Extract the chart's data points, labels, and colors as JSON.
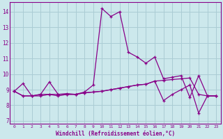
{
  "xlabel": "Windchill (Refroidissement éolien,°C)",
  "bg_color": "#cce8ec",
  "grid_color": "#aaccd4",
  "line_color": "#880088",
  "x": [
    0,
    1,
    2,
    3,
    4,
    5,
    6,
    7,
    8,
    9,
    10,
    11,
    12,
    13,
    14,
    15,
    16,
    17,
    18,
    19,
    20,
    21,
    22,
    23
  ],
  "series1": [
    8.9,
    9.4,
    8.6,
    8.7,
    9.5,
    8.7,
    8.75,
    8.7,
    8.85,
    9.3,
    14.2,
    13.7,
    14.0,
    11.4,
    11.1,
    10.7,
    11.1,
    9.7,
    9.8,
    9.9,
    8.5,
    9.9,
    8.6,
    8.6
  ],
  "series2": [
    8.9,
    8.6,
    8.6,
    8.6,
    8.7,
    8.6,
    8.7,
    8.7,
    8.8,
    8.85,
    8.9,
    9.0,
    9.1,
    9.2,
    9.3,
    9.35,
    9.55,
    9.6,
    9.65,
    9.7,
    9.75,
    8.7,
    8.6,
    8.6
  ],
  "series3": [
    8.9,
    8.6,
    8.6,
    8.7,
    8.7,
    8.7,
    8.7,
    8.7,
    8.8,
    8.85,
    8.9,
    9.0,
    9.1,
    9.2,
    9.3,
    9.35,
    9.55,
    8.3,
    8.7,
    9.0,
    9.3,
    7.5,
    8.6,
    8.6
  ],
  "ylim": [
    6.8,
    14.6
  ],
  "yticks": [
    7,
    8,
    9,
    10,
    11,
    12,
    13,
    14
  ],
  "xticks": [
    0,
    1,
    2,
    3,
    4,
    5,
    6,
    7,
    8,
    9,
    10,
    11,
    12,
    13,
    14,
    15,
    16,
    17,
    18,
    19,
    20,
    21,
    22,
    23
  ]
}
